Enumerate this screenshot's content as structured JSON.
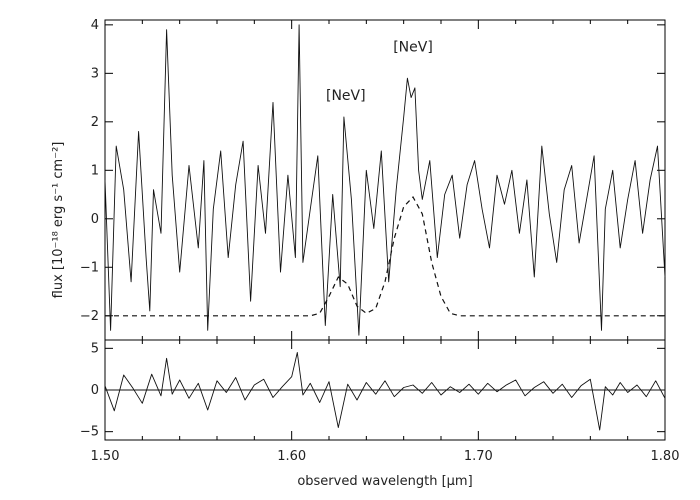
{
  "chart_data": [
    {
      "type": "line",
      "panel": "spectrum",
      "xlabel": "",
      "ylabel": "flux  [10⁻¹⁸ erg s⁻¹ cm⁻²]",
      "xlim": [
        1.5,
        1.8
      ],
      "ylim": [
        -2.5,
        4.1
      ],
      "yticks": [
        -2,
        -1,
        0,
        1,
        2,
        3,
        4
      ],
      "ytick_labels": [
        "−2",
        "−1",
        "0",
        "1",
        "2",
        "3",
        "4"
      ],
      "annotations": [
        {
          "text": "[NeV]",
          "x": 1.629,
          "y": 2.45
        },
        {
          "text": "[NeV]",
          "x": 1.665,
          "y": 3.45
        }
      ],
      "series": [
        {
          "style": "solid",
          "x": [
            1.5,
            1.503,
            1.506,
            1.51,
            1.514,
            1.518,
            1.522,
            1.524,
            1.526,
            1.53,
            1.533,
            1.536,
            1.54,
            1.545,
            1.55,
            1.553,
            1.555,
            1.558,
            1.562,
            1.566,
            1.57,
            1.574,
            1.578,
            1.582,
            1.586,
            1.59,
            1.594,
            1.598,
            1.602,
            1.604,
            1.606,
            1.61,
            1.614,
            1.618,
            1.622,
            1.626,
            1.628,
            1.632,
            1.636,
            1.64,
            1.644,
            1.648,
            1.652,
            1.656,
            1.66,
            1.662,
            1.664,
            1.666,
            1.668,
            1.67,
            1.674,
            1.678,
            1.682,
            1.686,
            1.69,
            1.694,
            1.698,
            1.702,
            1.706,
            1.71,
            1.714,
            1.718,
            1.722,
            1.726,
            1.73,
            1.734,
            1.738,
            1.742,
            1.746,
            1.75,
            1.754,
            1.758,
            1.762,
            1.766,
            1.768,
            1.772,
            1.776,
            1.78,
            1.784,
            1.788,
            1.792,
            1.796,
            1.8
          ],
          "y": [
            0.8,
            -2.3,
            1.5,
            0.6,
            -1.3,
            1.8,
            -0.8,
            -1.9,
            0.6,
            -0.3,
            3.9,
            0.9,
            -1.1,
            1.1,
            -0.6,
            1.2,
            -2.3,
            0.2,
            1.4,
            -0.8,
            0.7,
            1.6,
            -1.7,
            1.1,
            -0.3,
            2.4,
            -1.1,
            0.9,
            -0.8,
            4.0,
            -0.9,
            0.2,
            1.3,
            -2.2,
            0.5,
            -1.4,
            2.1,
            0.4,
            -2.4,
            1.0,
            -0.2,
            1.4,
            -1.3,
            0.6,
            2.1,
            2.9,
            2.5,
            2.7,
            1.0,
            0.4,
            1.2,
            -0.8,
            0.5,
            0.9,
            -0.4,
            0.7,
            1.2,
            0.2,
            -0.6,
            0.9,
            0.3,
            1.0,
            -0.3,
            0.8,
            -1.2,
            1.5,
            0.1,
            -0.9,
            0.6,
            1.1,
            -0.5,
            0.4,
            1.3,
            -2.3,
            0.2,
            1.0,
            -0.6,
            0.4,
            1.2,
            -0.3,
            0.8,
            1.5,
            -1.2
          ]
        },
        {
          "style": "dashed",
          "x": [
            1.5,
            1.61,
            1.615,
            1.62,
            1.625,
            1.63,
            1.635,
            1.64,
            1.645,
            1.65,
            1.655,
            1.66,
            1.665,
            1.67,
            1.675,
            1.68,
            1.685,
            1.69,
            1.8
          ],
          "y": [
            -2.0,
            -2.0,
            -1.95,
            -1.6,
            -1.2,
            -1.35,
            -1.8,
            -1.95,
            -1.85,
            -1.3,
            -0.4,
            0.25,
            0.45,
            0.1,
            -0.9,
            -1.6,
            -1.95,
            -2.0,
            -2.0
          ]
        }
      ]
    },
    {
      "type": "line",
      "panel": "residual",
      "xlabel": "observed wavelength [μm]",
      "ylabel": "",
      "xlim": [
        1.5,
        1.8
      ],
      "ylim": [
        -6,
        6
      ],
      "xticks": [
        1.5,
        1.6,
        1.7,
        1.8
      ],
      "xtick_labels": [
        "1.50",
        "1.60",
        "1.70",
        "1.80"
      ],
      "yticks": [
        -5,
        0,
        5
      ],
      "ytick_labels": [
        "−5",
        "0",
        "5"
      ],
      "series": [
        {
          "style": "solid",
          "x": [
            1.5,
            1.505,
            1.51,
            1.515,
            1.52,
            1.525,
            1.53,
            1.533,
            1.536,
            1.54,
            1.545,
            1.55,
            1.555,
            1.56,
            1.565,
            1.57,
            1.575,
            1.58,
            1.585,
            1.59,
            1.595,
            1.6,
            1.603,
            1.606,
            1.61,
            1.615,
            1.62,
            1.625,
            1.63,
            1.635,
            1.64,
            1.645,
            1.65,
            1.655,
            1.66,
            1.665,
            1.67,
            1.675,
            1.68,
            1.685,
            1.69,
            1.695,
            1.7,
            1.705,
            1.71,
            1.715,
            1.72,
            1.725,
            1.73,
            1.735,
            1.74,
            1.745,
            1.75,
            1.755,
            1.76,
            1.765,
            1.768,
            1.772,
            1.776,
            1.78,
            1.785,
            1.79,
            1.795,
            1.8
          ],
          "y": [
            0.5,
            -2.5,
            1.8,
            0.2,
            -1.6,
            1.9,
            -0.7,
            3.8,
            -0.5,
            1.2,
            -1.0,
            0.8,
            -2.4,
            1.1,
            -0.3,
            1.5,
            -1.2,
            0.6,
            1.3,
            -0.9,
            0.4,
            1.6,
            4.5,
            -0.6,
            0.8,
            -1.5,
            1.0,
            -4.5,
            0.7,
            -1.2,
            0.9,
            -0.5,
            1.1,
            -0.8,
            0.3,
            0.6,
            -0.4,
            0.9,
            -0.6,
            0.4,
            -0.3,
            0.7,
            -0.5,
            0.8,
            -0.2,
            0.6,
            1.2,
            -0.7,
            0.3,
            1.0,
            -0.4,
            0.7,
            -0.9,
            0.5,
            1.3,
            -4.8,
            0.4,
            -0.6,
            0.9,
            -0.3,
            0.6,
            -0.8,
            1.1,
            -1.0
          ]
        },
        {
          "style": "flat",
          "x": [
            1.5,
            1.8
          ],
          "y": [
            0,
            0
          ]
        }
      ]
    }
  ]
}
